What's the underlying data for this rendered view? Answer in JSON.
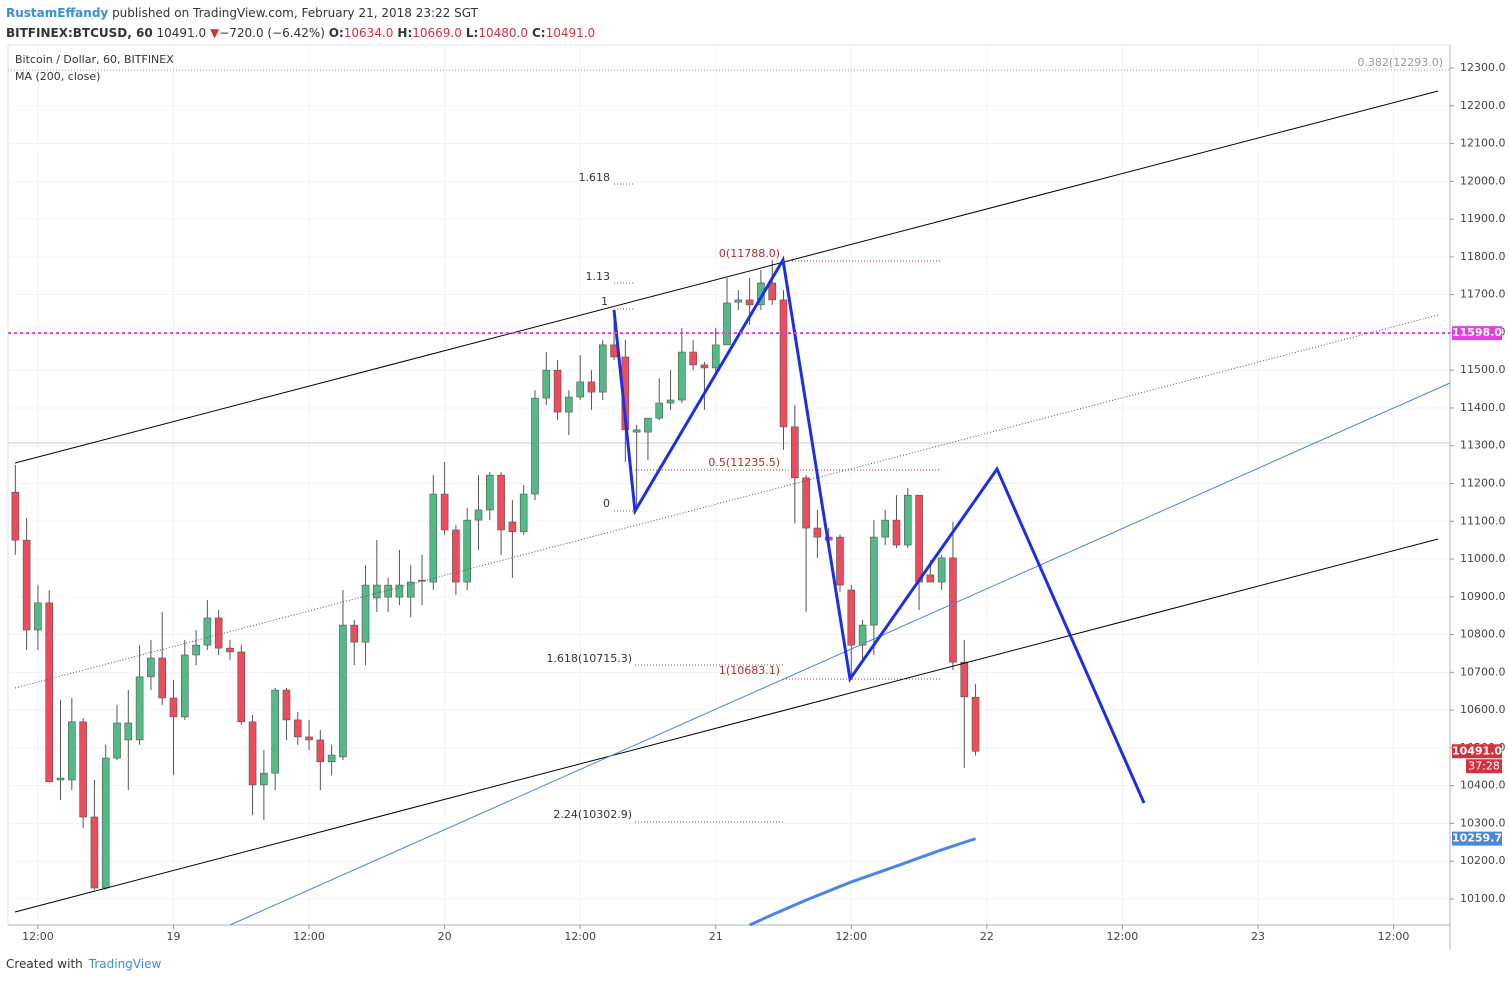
{
  "header": {
    "author": "RustamEffandy",
    "published": "published on TradingView.com, February 21, 2018 23:22 SGT",
    "symbol": "BITFINEX:BTCUSD, 60",
    "last": "10491.0",
    "change": "−720.0 (−6.42%)",
    "ohlc": [
      {
        "label": "O:",
        "value": "10634.0"
      },
      {
        "label": "H:",
        "value": "10669.0"
      },
      {
        "label": "L:",
        "value": "10480.0"
      },
      {
        "label": "C:",
        "value": "10491.0"
      }
    ]
  },
  "footer": {
    "created": "Created with",
    "brand": "TradingView"
  },
  "chart_data": {
    "type": "candlestick",
    "title": "Bitcoin / Dollar, 60, BITFINEX",
    "up_color": "#53b987",
    "down_color": "#eb4d5c",
    "xlim": [
      9.35,
      137
    ],
    "ylim": [
      10031,
      12361
    ],
    "xticks": [
      {
        "value": 12,
        "label": "12:00"
      },
      {
        "value": 24,
        "label": "19"
      },
      {
        "value": 36,
        "label": "12:00"
      },
      {
        "value": 48,
        "label": "20"
      },
      {
        "value": 60,
        "label": "12:00"
      },
      {
        "value": 72,
        "label": "21"
      },
      {
        "value": 84,
        "label": "12:00"
      },
      {
        "value": 96,
        "label": "22"
      },
      {
        "value": 108,
        "label": "12:00"
      },
      {
        "value": 120,
        "label": "23"
      },
      {
        "value": 132,
        "label": "12:00"
      }
    ],
    "yticks": [
      {
        "value": 10100,
        "label": "10100.0"
      },
      {
        "value": 10200,
        "label": "10200.0"
      },
      {
        "value": 10300,
        "label": "10300.0"
      },
      {
        "value": 10400,
        "label": "10400.0"
      },
      {
        "value": 10500,
        "label": "10500.0"
      },
      {
        "value": 10600,
        "label": "10600.0"
      },
      {
        "value": 10700,
        "label": "10700.0"
      },
      {
        "value": 10800,
        "label": "10800.0"
      },
      {
        "value": 10900,
        "label": "10900.0"
      },
      {
        "value": 11000,
        "label": "11000.0"
      },
      {
        "value": 11100,
        "label": "11100.0"
      },
      {
        "value": 11200,
        "label": "11200.0"
      },
      {
        "value": 11300,
        "label": "11300.0"
      },
      {
        "value": 11400,
        "label": "11400.0"
      },
      {
        "value": 11500,
        "label": "11500.0"
      },
      {
        "value": 11600,
        "label": "11600.0"
      },
      {
        "value": 11700,
        "label": "11700.0"
      },
      {
        "value": 11800,
        "label": "11800.0"
      },
      {
        "value": 11900,
        "label": "11900.0"
      },
      {
        "value": 12000,
        "label": "12000.0"
      },
      {
        "value": 12100,
        "label": "12100.0"
      },
      {
        "value": 12200,
        "label": "12200.0"
      },
      {
        "value": 12300,
        "label": "12300.0"
      }
    ],
    "series": [
      {
        "name": "BTCUSD",
        "x": [
          10,
          11,
          12,
          13,
          14,
          15,
          16,
          17,
          18,
          19,
          20,
          21,
          22,
          23,
          24,
          25,
          26,
          27,
          28,
          29,
          30,
          31,
          32,
          33,
          34,
          35,
          36,
          37,
          38,
          39,
          40,
          41,
          42,
          43,
          44,
          45,
          46,
          47,
          48,
          49,
          50,
          51,
          52,
          53,
          54,
          55,
          56,
          57,
          58,
          59,
          60,
          61,
          62,
          63,
          64,
          65,
          66,
          67,
          68,
          69,
          70,
          71,
          72,
          73,
          74,
          75,
          76,
          77,
          78,
          79,
          80,
          81,
          82,
          83,
          84,
          85,
          86,
          87,
          88,
          89,
          90,
          91,
          92,
          93,
          94,
          95
        ],
        "open": [
          11177,
          11050,
          10812,
          10884,
          10415,
          10415,
          10569,
          10317,
          10129,
          10473,
          10521,
          10521,
          10688,
          10738,
          10632,
          10582,
          10746,
          10772,
          10844,
          10764,
          10754,
          10569,
          10402,
          10433,
          10653,
          10574,
          10529,
          10521,
          10463,
          10476,
          10825,
          10780,
          10897,
          10899,
          10899,
          10899,
          10944,
          10939,
          11172,
          11077,
          10939,
          11103,
          11130,
          11222,
          11098,
          11072,
          11172,
          11426,
          11500,
          11389,
          11429,
          11469,
          11442,
          11567,
          11535,
          11336,
          11336,
          11373,
          11413,
          11421,
          11548,
          11514,
          11506,
          11567,
          11680,
          11686,
          11673,
          11731,
          11686,
          11350,
          11215,
          11082,
          11058,
          11058,
          10918,
          10772,
          10825,
          11058,
          11103,
          11037,
          11169,
          10958,
          10939,
          11003,
          10727,
          10634
        ],
        "high": [
          11249,
          11109,
          10931,
          10918,
          10627,
          10632,
          10579,
          10415,
          10508,
          10614,
          10653,
          10772,
          10786,
          10860,
          10680,
          10786,
          10812,
          10891,
          10865,
          10786,
          10772,
          10587,
          10494,
          10659,
          10659,
          10595,
          10574,
          10547,
          10508,
          10918,
          10839,
          10984,
          11050,
          10950,
          11024,
          10984,
          11011,
          11222,
          11257,
          11090,
          11135,
          11222,
          11230,
          11230,
          11156,
          11196,
          11447,
          11548,
          11527,
          11447,
          11540,
          11500,
          11580,
          11659,
          11580,
          11355,
          11373,
          11479,
          11500,
          11612,
          11580,
          11522,
          11612,
          11744,
          11712,
          11744,
          11765,
          11792,
          11712,
          11408,
          11222,
          11130,
          11082,
          11064,
          10931,
          10839,
          11103,
          11130,
          11169,
          11188,
          11169,
          10997,
          11011,
          11098,
          10786,
          10669
        ],
        "low": [
          11011,
          10759,
          10759,
          10410,
          10362,
          10388,
          10288,
          10124,
          10124,
          10468,
          10388,
          10508,
          10653,
          10614,
          10428,
          10574,
          10719,
          10759,
          10746,
          10733,
          10561,
          10322,
          10309,
          10388,
          10521,
          10508,
          10494,
          10388,
          10428,
          10468,
          10719,
          10719,
          10860,
          10860,
          10878,
          10846,
          10878,
          10918,
          11064,
          10905,
          10918,
          11024,
          11103,
          11011,
          10950,
          11064,
          11156,
          11408,
          11368,
          11328,
          11421,
          11395,
          11421,
          11527,
          11257,
          11130,
          11262,
          11368,
          11395,
          11413,
          11500,
          11395,
          11495,
          11567,
          11659,
          11620,
          11659,
          11673,
          11289,
          11095,
          10860,
          11003,
          11037,
          10913,
          10680,
          10733,
          10746,
          11037,
          11029,
          11029,
          10865,
          10939,
          10918,
          10706,
          10447,
          10480
        ],
        "close": [
          11050,
          10812,
          10884,
          10410,
          10420,
          10569,
          10317,
          10129,
          10473,
          10566,
          10566,
          10688,
          10738,
          10632,
          10582,
          10746,
          10772,
          10844,
          10764,
          10754,
          10569,
          10402,
          10433,
          10653,
          10574,
          10529,
          10521,
          10463,
          10481,
          10825,
          10780,
          10931,
          10931,
          10931,
          10931,
          10939,
          10942,
          11172,
          11077,
          10939,
          11103,
          11130,
          11222,
          11077,
          11072,
          11172,
          11426,
          11500,
          11389,
          11429,
          11469,
          11442,
          11567,
          11535,
          11342,
          11342,
          11373,
          11413,
          11421,
          11548,
          11514,
          11506,
          11567,
          11678,
          11686,
          11673,
          11731,
          11686,
          11350,
          11215,
          11082,
          11058,
          11050,
          10931,
          10772,
          10825,
          11058,
          11103,
          11037,
          11169,
          10939,
          10939,
          11003,
          10727,
          10635,
          10491
        ]
      },
      {
        "name": "MA (200, close)",
        "color": "#4a86e0",
        "x": [
          75,
          77,
          80,
          84,
          88,
          92,
          95
        ],
        "values": [
          10031,
          10058,
          10097,
          10145,
          10187,
          10230,
          10259.7
        ]
      }
    ],
    "axis_labels": [
      {
        "value": 10491,
        "label": "10491.0",
        "color": "#d0333e"
      },
      {
        "value": 10259.7,
        "label": "10259.7",
        "color": "#4a86e0"
      },
      {
        "value": 11598,
        "label": "11598.0",
        "color": "#e040e0"
      }
    ],
    "countdown": "37:28",
    "level_line": {
      "value": 11598,
      "color": "#e040e0"
    },
    "annotations": [
      "0.382(12293.0)",
      "1.618",
      "1.13",
      "1",
      "0",
      "0(11788.0)",
      "0.5(11235.5)",
      "1.618(10715.3)",
      "1(10683.1)",
      "2.24(10302.9)"
    ]
  }
}
